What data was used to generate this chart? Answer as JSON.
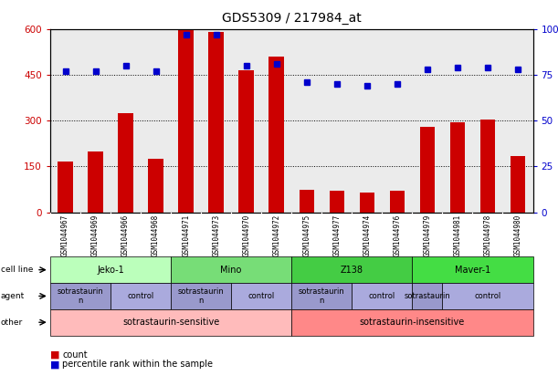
{
  "title": "GDS5309 / 217984_at",
  "samples": [
    "GSM1044967",
    "GSM1044969",
    "GSM1044966",
    "GSM1044968",
    "GSM1044971",
    "GSM1044973",
    "GSM1044970",
    "GSM1044972",
    "GSM1044975",
    "GSM1044977",
    "GSM1044974",
    "GSM1044976",
    "GSM1044979",
    "GSM1044981",
    "GSM1044978",
    "GSM1044980"
  ],
  "counts": [
    165,
    200,
    325,
    175,
    600,
    590,
    465,
    510,
    75,
    70,
    65,
    70,
    280,
    295,
    305,
    185
  ],
  "percentiles": [
    77,
    77,
    80,
    77,
    97,
    97,
    80,
    81,
    71,
    70,
    69,
    70,
    78,
    79,
    79,
    78
  ],
  "bar_color": "#cc0000",
  "dot_color": "#0000cc",
  "ylim_left": [
    0,
    600
  ],
  "ylim_right": [
    0,
    100
  ],
  "yticks_left": [
    0,
    150,
    300,
    450,
    600
  ],
  "yticks_right": [
    0,
    25,
    50,
    75,
    100
  ],
  "ytick_labels_left": [
    "0",
    "150",
    "300",
    "450",
    "600"
  ],
  "ytick_labels_right": [
    "0",
    "25",
    "50",
    "75",
    "100%"
  ],
  "cell_line_row": [
    {
      "label": "Jeko-1",
      "start": 0,
      "end": 3,
      "color": "#bbffbb"
    },
    {
      "label": "Mino",
      "start": 4,
      "end": 7,
      "color": "#77dd77"
    },
    {
      "label": "Z138",
      "start": 8,
      "end": 11,
      "color": "#44cc44"
    },
    {
      "label": "Maver-1",
      "start": 12,
      "end": 15,
      "color": "#44dd44"
    }
  ],
  "agent_row": [
    {
      "label": "sotrastaurin\nn",
      "start": 0,
      "end": 1,
      "color": "#9999cc"
    },
    {
      "label": "control",
      "start": 2,
      "end": 3,
      "color": "#aaaadd"
    },
    {
      "label": "sotrastaurin\nn",
      "start": 4,
      "end": 5,
      "color": "#9999cc"
    },
    {
      "label": "control",
      "start": 6,
      "end": 7,
      "color": "#aaaadd"
    },
    {
      "label": "sotrastaurin\nn",
      "start": 8,
      "end": 9,
      "color": "#9999cc"
    },
    {
      "label": "control",
      "start": 10,
      "end": 11,
      "color": "#aaaadd"
    },
    {
      "label": "sotrastaurin",
      "start": 12,
      "end": 12,
      "color": "#9999cc"
    },
    {
      "label": "control",
      "start": 13,
      "end": 15,
      "color": "#aaaadd"
    }
  ],
  "other_row": [
    {
      "label": "sotrastaurin-sensitive",
      "start": 0,
      "end": 7,
      "color": "#ffbbbb"
    },
    {
      "label": "sotrastaurin-insensitive",
      "start": 8,
      "end": 15,
      "color": "#ff8888"
    }
  ],
  "row_labels": [
    "cell line",
    "agent",
    "other"
  ],
  "legend_items": [
    {
      "color": "#cc0000",
      "label": "count"
    },
    {
      "color": "#0000cc",
      "label": "percentile rank within the sample"
    }
  ],
  "plot_bg": "#ebebeb",
  "background_color": "#ffffff",
  "xtick_bg": "#cccccc"
}
